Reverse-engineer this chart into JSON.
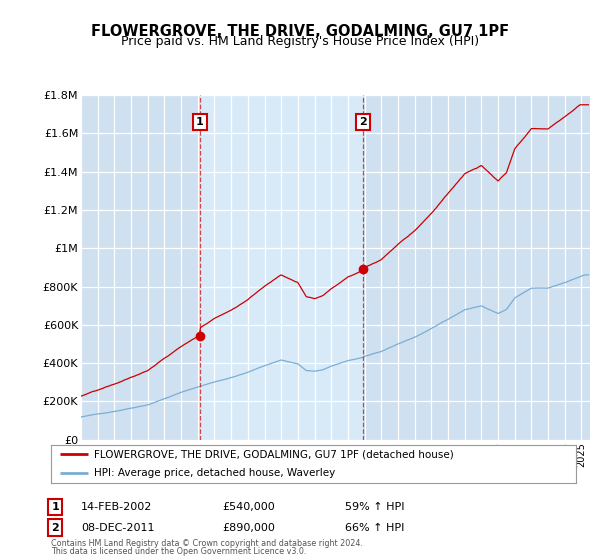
{
  "title": "FLOWERGROVE, THE DRIVE, GODALMING, GU7 1PF",
  "subtitle": "Price paid vs. HM Land Registry's House Price Index (HPI)",
  "title_fontsize": 10.5,
  "subtitle_fontsize": 9,
  "bg_color": "#cfe0f0",
  "highlight_bg": "#d8eaf8",
  "ylim": [
    0,
    1800000
  ],
  "yticks": [
    0,
    200000,
    400000,
    600000,
    800000,
    1000000,
    1200000,
    1400000,
    1600000,
    1800000
  ],
  "ytick_labels": [
    "£0",
    "£200K",
    "£400K",
    "£600K",
    "£800K",
    "£1M",
    "£1.2M",
    "£1.4M",
    "£1.6M",
    "£1.8M"
  ],
  "red_color": "#cc0000",
  "blue_color": "#7aaed4",
  "sale1_x": 2002.12,
  "sale1_price": 540000,
  "sale2_x": 2011.93,
  "sale2_price": 890000,
  "xlim_start": 1995.0,
  "xlim_end": 2025.5,
  "legend_red": "FLOWERGROVE, THE DRIVE, GODALMING, GU7 1PF (detached house)",
  "legend_blue": "HPI: Average price, detached house, Waverley",
  "sale1_date": "14-FEB-2002",
  "sale1_price_str": "£540,000",
  "sale1_hpi": "59% ↑ HPI",
  "sale2_date": "08-DEC-2011",
  "sale2_price_str": "£890,000",
  "sale2_hpi": "66% ↑ HPI",
  "footer1": "Contains HM Land Registry data © Crown copyright and database right 2024.",
  "footer2": "This data is licensed under the Open Government Licence v3.0."
}
